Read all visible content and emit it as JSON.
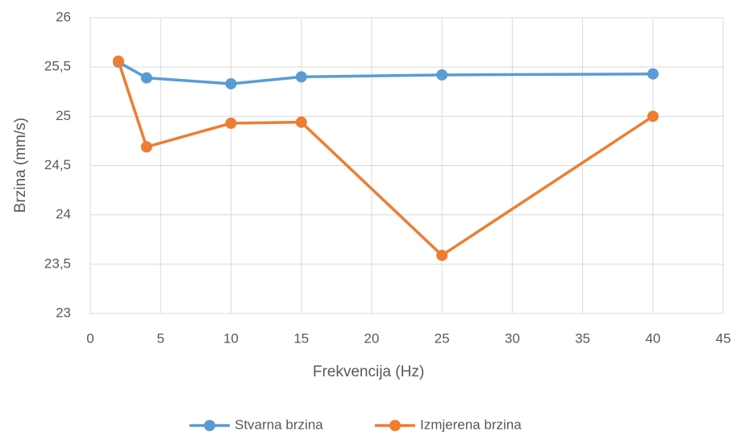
{
  "chart_data": {
    "type": "line",
    "x_label": "Frekvencija (Hz)",
    "y_label": "Brzina (mm/s)",
    "x": [
      2,
      4,
      10,
      15,
      25,
      40
    ],
    "series": [
      {
        "name": "Stvarna brzina",
        "color": "#5b9bd5",
        "values": [
          25.55,
          25.39,
          25.33,
          25.4,
          25.42,
          25.43
        ]
      },
      {
        "name": "Izmjerena brzina",
        "color": "#ed7d31",
        "values": [
          25.56,
          24.69,
          24.93,
          24.94,
          23.59,
          25.0
        ]
      }
    ],
    "xlim": [
      0,
      45
    ],
    "xticks": [
      0,
      5,
      10,
      15,
      20,
      25,
      30,
      35,
      40,
      45
    ],
    "ylim": [
      23,
      26
    ],
    "yticks": [
      23,
      {
        "value": 23.5,
        "label": "23,5"
      },
      24,
      {
        "value": 24.5,
        "label": "24,5"
      },
      25,
      {
        "value": 25.5,
        "label": "25,5"
      },
      26
    ],
    "grid": true,
    "legend": "bottom"
  }
}
